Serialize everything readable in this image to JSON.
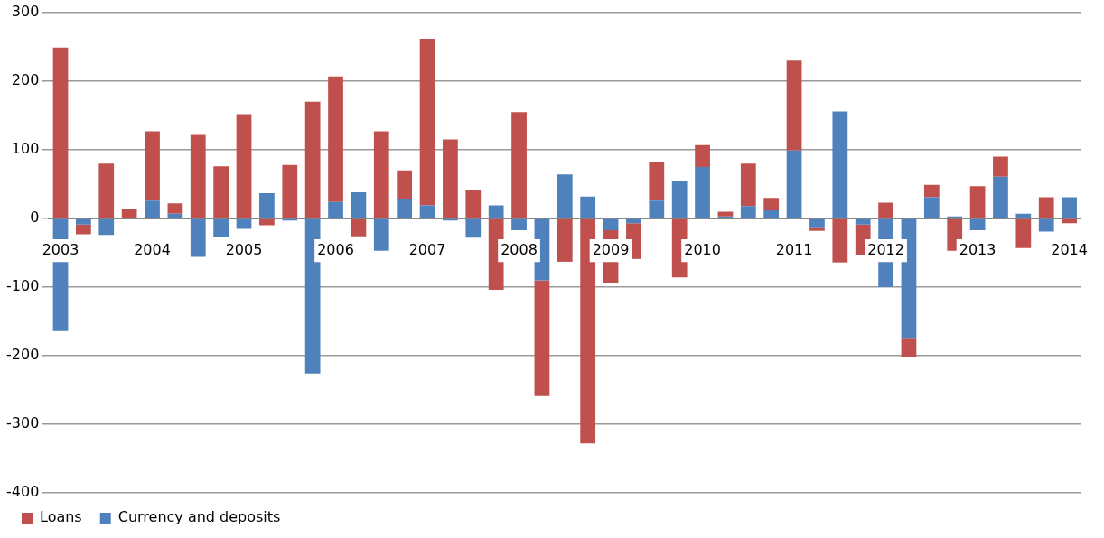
{
  "chart_data": {
    "type": "bar",
    "stacked": true,
    "categories": [
      "2003",
      null,
      null,
      null,
      "2004",
      null,
      null,
      null,
      "2005",
      null,
      null,
      null,
      "2006",
      null,
      null,
      null,
      "2007",
      null,
      null,
      null,
      "2008",
      null,
      null,
      null,
      "2009",
      null,
      null,
      null,
      "2010",
      null,
      null,
      null,
      "2011",
      null,
      null,
      null,
      "2012",
      null,
      null,
      null,
      "2013",
      null,
      null,
      null,
      "2014"
    ],
    "series": [
      {
        "name": "Currency and deposits",
        "color": "#4f81bd",
        "values": [
          -164,
          -9,
          -24,
          0,
          26,
          7,
          -56,
          -27,
          -15,
          37,
          -3,
          -226,
          24,
          38,
          -47,
          28,
          19,
          -3,
          -28,
          19,
          -17,
          -90,
          64,
          32,
          -17,
          -7,
          26,
          54,
          75,
          3,
          18,
          12,
          99,
          -14,
          156,
          -9,
          -100,
          -174,
          31,
          3,
          -17,
          61,
          7,
          -19,
          31
        ]
      },
      {
        "name": "Loans",
        "color": "#c0504d",
        "values": [
          249,
          -14,
          80,
          14,
          101,
          15,
          123,
          76,
          152,
          -10,
          78,
          170,
          183,
          -26,
          127,
          42,
          243,
          115,
          42,
          -104,
          155,
          -169,
          -63,
          -328,
          -77,
          -52,
          56,
          -86,
          32,
          7,
          62,
          18,
          131,
          -4,
          -64,
          -44,
          23,
          -28,
          18,
          -47,
          47,
          29,
          -43,
          31,
          -7
        ]
      }
    ],
    "ylim": [
      -400,
      300
    ],
    "yticks": [
      -400,
      -300,
      -200,
      -100,
      0,
      100,
      200,
      300
    ],
    "grid": "y",
    "legend": "bottom left"
  }
}
